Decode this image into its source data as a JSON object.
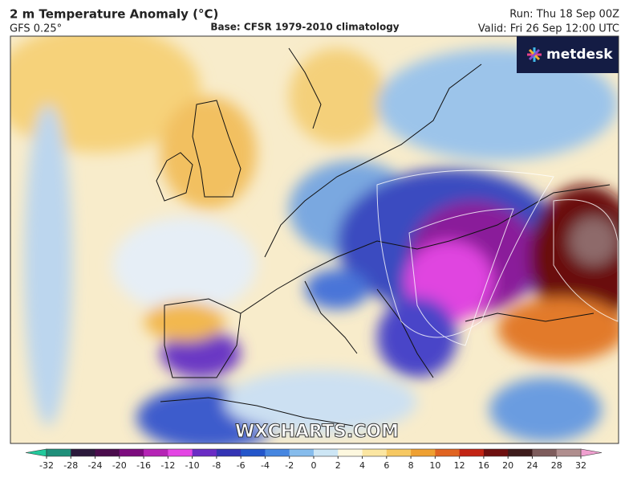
{
  "header": {
    "title": "2 m Temperature Anomaly (°C)",
    "model": "GFS 0.25°",
    "base": "Base: CFSR 1979-2010 climatology",
    "run": "Run: Thu 18 Sep 00Z",
    "valid": "Valid: Fri 26 Sep 12:00 UTC"
  },
  "logo": "metdesk",
  "watermark": "WXCHARTS.COM",
  "legend": {
    "ticks": [
      -32,
      -28,
      -24,
      -20,
      -16,
      -12,
      -10,
      -8,
      -6,
      -4,
      -2,
      0,
      2,
      4,
      6,
      8,
      10,
      12,
      16,
      20,
      24,
      28,
      32
    ],
    "colors": [
      "#1f8f7a",
      "#2c1a3c",
      "#4a0c4c",
      "#7c0c7e",
      "#b524b5",
      "#e445e4",
      "#6a2cc4",
      "#3434b4",
      "#2456ca",
      "#4686e0",
      "#86bcec",
      "#cde6f5",
      "#fdf8df",
      "#fbe6a2",
      "#f6c862",
      "#eea032",
      "#e06422",
      "#c22414",
      "#6e1010",
      "#3e1c1c",
      "#7e5c5c",
      "#b08e8e",
      "#d6b2c2"
    ],
    "under_color": "#22c99c",
    "over_color": "#f0a0d0"
  }
}
